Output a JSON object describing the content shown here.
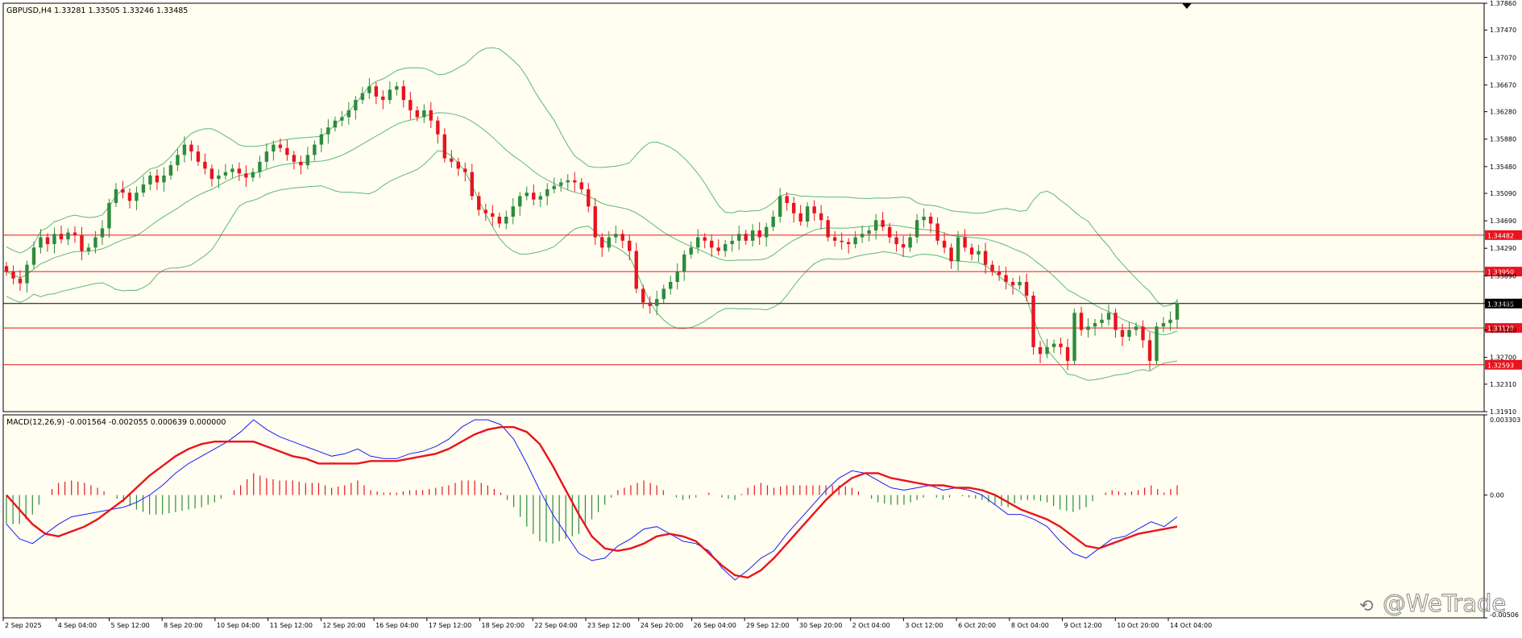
{
  "window": {
    "symbol_header": "GBPUSD,H4  1.33281 1.33505 1.33246 1.33485",
    "watermark": "@WeTrade"
  },
  "colors": {
    "background": "#fffef0",
    "frame": "#000000",
    "bull_candle": "#2e8b3d",
    "bear_candle": "#e8141e",
    "bollinger": "#5cb87a",
    "level_line": "#e8141e",
    "price_line": "#000000",
    "macd_line": "#1a1aff",
    "signal_line": "#e8141e",
    "hist_pos": "#e8141e",
    "hist_neg": "#2e8b3d"
  },
  "chart_data": [
    {
      "type": "candlestick",
      "title": "GBPUSD,H4  1.33281 1.33505 1.33246 1.33485",
      "ylim": [
        1.3191,
        1.3786
      ],
      "y_ticks": [
        "1.37860",
        "1.37470",
        "1.37070",
        "1.36670",
        "1.36280",
        "1.35880",
        "1.35480",
        "1.35090",
        "1.34690",
        "1.34290",
        "1.33890",
        "1.33490",
        "1.33100",
        "1.32700",
        "1.32310",
        "1.31910"
      ],
      "x_labels": [
        "2 Sep 2025",
        "4 Sep 04:00",
        "5 Sep 12:00",
        "8 Sep 20:00",
        "10 Sep 04:00",
        "11 Sep 12:00",
        "12 Sep 20:00",
        "16 Sep 04:00",
        "17 Sep 12:00",
        "18 Sep 20:00",
        "22 Sep 04:00",
        "23 Sep 12:00",
        "24 Sep 20:00",
        "26 Sep 04:00",
        "29 Sep 12:00",
        "30 Sep 20:00",
        "2 Oct 04:00",
        "3 Oct 12:00",
        "6 Oct 20:00",
        "8 Oct 04:00",
        "9 Oct 12:00",
        "10 Oct 20:00",
        "14 Oct 04:00"
      ],
      "current_price": 1.33485,
      "current_price_label": "1.33485",
      "horizontal_levels": [
        {
          "value": 1.34482,
          "label": "1.34482"
        },
        {
          "value": 1.3395,
          "label": "1.33950"
        },
        {
          "value": 1.33129,
          "label": "1.33129"
        },
        {
          "value": 1.32593,
          "label": "1.32593"
        }
      ],
      "close_series": [
        1.3395,
        1.3385,
        1.3378,
        1.3405,
        1.343,
        1.3445,
        1.3435,
        1.345,
        1.3442,
        1.3452,
        1.3448,
        1.3425,
        1.343,
        1.3445,
        1.3458,
        1.3495,
        1.3515,
        1.351,
        1.3498,
        1.351,
        1.3522,
        1.3535,
        1.3525,
        1.3535,
        1.355,
        1.3565,
        1.358,
        1.357,
        1.3555,
        1.3545,
        1.353,
        1.3535,
        1.354,
        1.3545,
        1.3538,
        1.3532,
        1.354,
        1.3555,
        1.357,
        1.358,
        1.3575,
        1.3565,
        1.3555,
        1.355,
        1.3565,
        1.358,
        1.3595,
        1.3605,
        1.3615,
        1.362,
        1.363,
        1.3645,
        1.3655,
        1.3665,
        1.365,
        1.3645,
        1.366,
        1.3665,
        1.3645,
        1.363,
        1.362,
        1.363,
        1.3615,
        1.3595,
        1.356,
        1.3555,
        1.3545,
        1.354,
        1.3505,
        1.3485,
        1.348,
        1.3475,
        1.3465,
        1.3475,
        1.349,
        1.3505,
        1.351,
        1.35,
        1.3505,
        1.3515,
        1.352,
        1.3525,
        1.3528,
        1.3525,
        1.3515,
        1.349,
        1.3445,
        1.343,
        1.3445,
        1.345,
        1.344,
        1.3425,
        1.337,
        1.335,
        1.3345,
        1.3355,
        1.337,
        1.338,
        1.3395,
        1.342,
        1.343,
        1.3445,
        1.344,
        1.343,
        1.3425,
        1.3435,
        1.344,
        1.345,
        1.344,
        1.3455,
        1.3445,
        1.346,
        1.3475,
        1.3505,
        1.3495,
        1.348,
        1.3468,
        1.349,
        1.348,
        1.347,
        1.3445,
        1.344,
        1.3438,
        1.3435,
        1.3445,
        1.345,
        1.3455,
        1.347,
        1.346,
        1.3445,
        1.3435,
        1.343,
        1.3445,
        1.347,
        1.3475,
        1.3465,
        1.344,
        1.343,
        1.341,
        1.3445,
        1.343,
        1.342,
        1.3425,
        1.3405,
        1.3395,
        1.339,
        1.338,
        1.3375,
        1.338,
        1.336,
        1.3285,
        1.3275,
        1.3285,
        1.329,
        1.3285,
        1.3265,
        1.3335,
        1.331,
        1.3315,
        1.332,
        1.3325,
        1.3335,
        1.331,
        1.33,
        1.331,
        1.3315,
        1.3295,
        1.3265,
        1.3315,
        1.332,
        1.3325,
        1.3349
      ],
      "series": [
        {
          "name": "MACD(12,26,9)",
          "values": [
            -0.0012,
            -0.0018,
            -0.002,
            -0.0016,
            -0.0012,
            -0.0009,
            -0.0008,
            -0.0007,
            -0.0006,
            -0.0005,
            -0.0003,
            0.0,
            0.0004,
            0.0009,
            0.0013,
            0.0016,
            0.0019,
            0.0022,
            0.0026,
            0.0031,
            0.0027,
            0.0024,
            0.0022,
            0.002,
            0.0018,
            0.0016,
            0.0017,
            0.0019,
            0.0016,
            0.0015,
            0.0015,
            0.0017,
            0.0018,
            0.002,
            0.0023,
            0.0028,
            0.0031,
            0.0031,
            0.0029,
            0.0023,
            0.0013,
            0.0002,
            -0.0008,
            -0.0016,
            -0.0024,
            -0.0027,
            -0.0026,
            -0.0021,
            -0.0018,
            -0.0014,
            -0.0013,
            -0.0016,
            -0.0019,
            -0.002,
            -0.0023,
            -0.003,
            -0.0035,
            -0.0031,
            -0.0026,
            -0.0023,
            -0.0016,
            -0.001,
            -0.0004,
            0.0002,
            0.0007,
            0.001,
            0.0009,
            0.0006,
            0.0003,
            0.0002,
            0.0003,
            0.0004,
            0.0002,
            0.0003,
            0.0002,
            0.0,
            -0.0004,
            -0.0008,
            -0.0008,
            -0.001,
            -0.0013,
            -0.0019,
            -0.0024,
            -0.0026,
            -0.0022,
            -0.0018,
            -0.0017,
            -0.0014,
            -0.0011,
            -0.0013,
            -0.0009
          ]
        },
        {
          "name": "Signal",
          "values": [
            0.0,
            -0.0006,
            -0.0012,
            -0.0016,
            -0.0017,
            -0.0015,
            -0.0013,
            -0.001,
            -0.0006,
            -0.0002,
            0.0003,
            0.0008,
            0.0012,
            0.0016,
            0.0019,
            0.0021,
            0.0022,
            0.0022,
            0.0022,
            0.0022,
            0.002,
            0.0018,
            0.0016,
            0.0015,
            0.0013,
            0.0013,
            0.0013,
            0.0013,
            0.0014,
            0.0014,
            0.0014,
            0.0015,
            0.0016,
            0.0017,
            0.0019,
            0.0022,
            0.0025,
            0.0027,
            0.0028,
            0.0028,
            0.0026,
            0.0021,
            0.0012,
            0.0002,
            -0.0008,
            -0.0017,
            -0.0022,
            -0.0023,
            -0.0022,
            -0.002,
            -0.0017,
            -0.0016,
            -0.0017,
            -0.0019,
            -0.0024,
            -0.0029,
            -0.0033,
            -0.0034,
            -0.0031,
            -0.0026,
            -0.002,
            -0.0014,
            -0.0008,
            -0.0002,
            0.0003,
            0.0007,
            0.0009,
            0.0009,
            0.0007,
            0.0006,
            0.0005,
            0.0004,
            0.0004,
            0.0003,
            0.0003,
            0.0002,
            0.0,
            -0.0003,
            -0.0006,
            -0.0008,
            -0.001,
            -0.0013,
            -0.0017,
            -0.0021,
            -0.0022,
            -0.002,
            -0.0018,
            -0.0016,
            -0.0015,
            -0.0014,
            -0.0013
          ]
        },
        {
          "name": "Histogram",
          "values": [
            -0.0012,
            -0.0012,
            -0.0008,
            0.0,
            0.0005,
            0.0006,
            0.0005,
            0.0003,
            0.0,
            -0.0003,
            -0.0006,
            -0.0008,
            -0.0008,
            -0.0007,
            -0.0006,
            -0.0005,
            -0.0003,
            0.0,
            0.0004,
            0.0009,
            0.0007,
            0.0006,
            0.0006,
            0.0005,
            0.0005,
            0.0003,
            0.0004,
            0.0006,
            0.0002,
            0.0001,
            0.0001,
            0.0002,
            0.0002,
            0.0003,
            0.0004,
            0.0006,
            0.0006,
            0.0004,
            0.0001,
            -0.0005,
            -0.0013,
            -0.0019,
            -0.002,
            -0.0018,
            -0.0016,
            -0.001,
            -0.0004,
            0.0002,
            0.0004,
            0.0006,
            0.0004,
            0.0,
            -0.0002,
            -0.0001,
            0.0001,
            -0.0001,
            -0.0002,
            0.0003,
            0.0005,
            0.0003,
            0.0004,
            0.0004,
            0.0004,
            0.0004,
            0.0004,
            0.0003,
            0.0,
            -0.0003,
            -0.0004,
            -0.0004,
            -0.0002,
            0.0,
            -0.0002,
            0.0,
            -0.0001,
            -0.0002,
            -0.0004,
            -0.0005,
            -0.0002,
            -0.0002,
            -0.0003,
            -0.0006,
            -0.0007,
            -0.0005,
            0.0,
            0.0002,
            0.0001,
            0.0002,
            0.0004,
            0.0001,
            0.0004
          ]
        }
      ],
      "macd_label": "MACD(12,26,9) -0.001564 -0.002055 0.000639 0.000000",
      "macd_ticks": [
        "0.003303",
        "0.00",
        "-0.00506"
      ],
      "macd_ylim": [
        -0.00506,
        0.003303
      ]
    }
  ]
}
